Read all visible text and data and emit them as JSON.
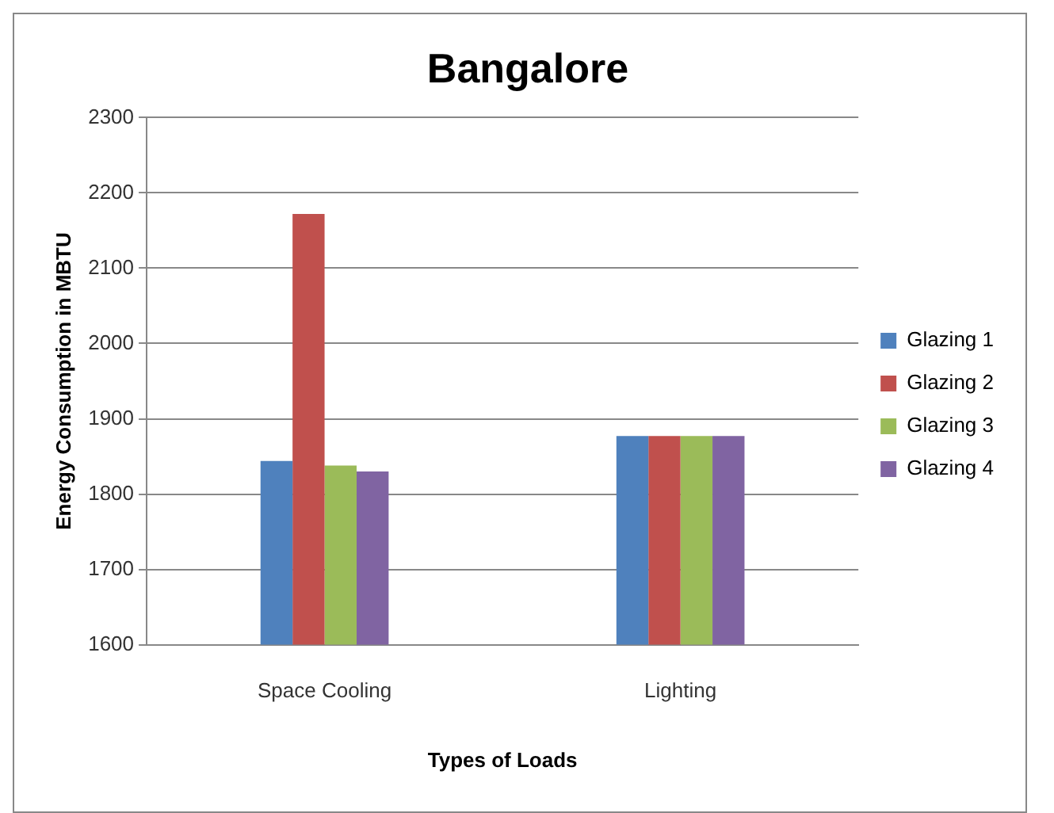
{
  "chart_data": {
    "type": "bar",
    "title": "Bangalore",
    "xlabel": "Types of Loads",
    "ylabel": "Energy Consumption in MBTU",
    "categories": [
      "Space Cooling",
      "Lighting"
    ],
    "series": [
      {
        "name": "Glazing 1",
        "color": "#4f81bd",
        "values": [
          1844,
          1877
        ]
      },
      {
        "name": "Glazing 2",
        "color": "#c0504d",
        "values": [
          2172,
          1877
        ]
      },
      {
        "name": "Glazing 3",
        "color": "#9bbb59",
        "values": [
          1838,
          1877
        ]
      },
      {
        "name": "Glazing 4",
        "color": "#8064a2",
        "values": [
          1830,
          1877
        ]
      }
    ],
    "ylim": [
      1600,
      2300
    ],
    "yticks": [
      1600,
      1700,
      1800,
      1900,
      2000,
      2100,
      2200,
      2300
    ],
    "grid": "y",
    "legend": "right"
  }
}
